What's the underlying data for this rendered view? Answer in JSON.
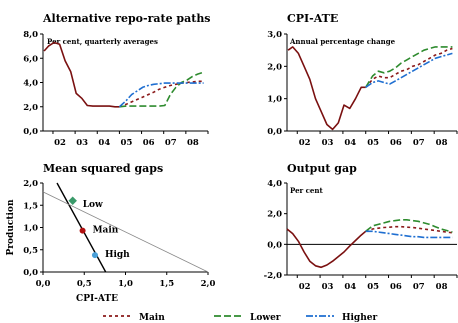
{
  "colors": {
    "main": "#8b1a1a",
    "lower": "#2e8b2e",
    "higher": "#1f6fd1",
    "history": "#7a1010",
    "axis": "#000000",
    "reference": "#888888",
    "low_marker": "#3a9a6a",
    "main_marker": "#b01010",
    "high_marker": "#4aa0d8"
  },
  "legend": {
    "main_label": "Main",
    "lower_label": "Lower",
    "higher_label": "Higher"
  },
  "chart_data": [
    {
      "type": "line",
      "title": "Alternative repo-rate paths",
      "subtitle": "Per cent, quarterly averages",
      "x_tick_labels": [
        "02",
        "03",
        "04",
        "05",
        "06",
        "07",
        "08"
      ],
      "y_tick_labels": [
        "0,0",
        "2,0",
        "4,0",
        "6,0",
        "8,0"
      ],
      "xlim": [
        2001.55,
        2009.0
      ],
      "ylim": [
        0,
        8
      ],
      "series": [
        {
          "name": "",
          "role": "history",
          "x": [
            2001.6,
            2001.8,
            2002.05,
            2002.3,
            2002.55,
            2002.8,
            2003.05,
            2003.3,
            2003.55,
            2003.8,
            2004.05,
            2004.3,
            2004.55,
            2004.8,
            2005.0
          ],
          "values": [
            6.6,
            7.0,
            7.3,
            7.15,
            5.8,
            4.9,
            3.1,
            2.7,
            2.1,
            2.05,
            2.05,
            2.05,
            2.05,
            2.0,
            2.0
          ]
        },
        {
          "name": "Main",
          "x": [
            2005.0,
            2005.3,
            2005.55,
            2005.8,
            2006.05,
            2006.3,
            2006.55,
            2006.8,
            2007.05,
            2007.3,
            2007.55,
            2007.8,
            2008.05,
            2008.3,
            2008.55,
            2008.8
          ],
          "values": [
            2.0,
            2.2,
            2.4,
            2.6,
            2.8,
            3.0,
            3.2,
            3.45,
            3.6,
            3.75,
            3.85,
            3.95,
            4.0,
            4.05,
            4.1,
            4.1
          ]
        },
        {
          "name": "Lower",
          "x": [
            2005.0,
            2005.3,
            2005.55,
            2005.8,
            2006.05,
            2006.3,
            2006.55,
            2006.8,
            2007.05,
            2007.3,
            2007.55,
            2007.8,
            2008.05,
            2008.3,
            2008.55,
            2008.8
          ],
          "values": [
            2.0,
            2.05,
            2.05,
            2.05,
            2.05,
            2.05,
            2.05,
            2.05,
            2.1,
            3.0,
            3.6,
            4.0,
            4.2,
            4.5,
            4.7,
            4.85
          ]
        },
        {
          "name": "Higher",
          "x": [
            2005.0,
            2005.3,
            2005.55,
            2005.8,
            2006.05,
            2006.3,
            2006.55,
            2006.8,
            2007.05,
            2007.3,
            2007.55,
            2007.8,
            2008.05,
            2008.3,
            2008.55,
            2008.8
          ],
          "values": [
            2.0,
            2.5,
            3.0,
            3.3,
            3.6,
            3.75,
            3.85,
            3.9,
            3.95,
            3.95,
            3.95,
            3.95,
            3.95,
            3.95,
            3.95,
            3.95
          ]
        }
      ]
    },
    {
      "type": "line",
      "title": "CPI-ATE",
      "subtitle": "Annual percentage change",
      "x_tick_labels": [
        "02",
        "03",
        "04",
        "05",
        "06",
        "07",
        "08"
      ],
      "y_tick_labels": [
        "0,0",
        "1,0",
        "2,0",
        "3,0"
      ],
      "xlim": [
        2001.55,
        2009.0
      ],
      "ylim": [
        0,
        3
      ],
      "series": [
        {
          "name": "",
          "role": "history",
          "x": [
            2001.6,
            2001.8,
            2002.05,
            2002.3,
            2002.55,
            2002.8,
            2003.05,
            2003.3,
            2003.55,
            2003.8,
            2004.05,
            2004.3,
            2004.55,
            2004.8,
            2005.0
          ],
          "values": [
            2.5,
            2.6,
            2.4,
            2.0,
            1.6,
            1.0,
            0.6,
            0.2,
            0.05,
            0.25,
            0.8,
            0.7,
            1.0,
            1.35,
            1.35
          ]
        },
        {
          "name": "Main",
          "x": [
            2005.0,
            2005.3,
            2005.55,
            2005.8,
            2006.05,
            2006.3,
            2006.55,
            2006.8,
            2007.05,
            2007.3,
            2007.55,
            2007.8,
            2008.05,
            2008.3,
            2008.55,
            2008.8
          ],
          "values": [
            1.35,
            1.6,
            1.7,
            1.65,
            1.65,
            1.75,
            1.85,
            1.9,
            2.0,
            2.05,
            2.15,
            2.25,
            2.35,
            2.4,
            2.5,
            2.55
          ]
        },
        {
          "name": "Lower",
          "x": [
            2005.0,
            2005.3,
            2005.55,
            2005.8,
            2006.05,
            2006.3,
            2006.55,
            2006.8,
            2007.05,
            2007.3,
            2007.55,
            2007.8,
            2008.05,
            2008.3,
            2008.55,
            2008.8
          ],
          "values": [
            1.35,
            1.7,
            1.85,
            1.8,
            1.85,
            1.95,
            2.1,
            2.2,
            2.3,
            2.4,
            2.5,
            2.55,
            2.6,
            2.6,
            2.6,
            2.6
          ]
        },
        {
          "name": "Higher",
          "x": [
            2005.0,
            2005.3,
            2005.55,
            2005.8,
            2006.05,
            2006.3,
            2006.55,
            2006.8,
            2007.05,
            2007.3,
            2007.55,
            2007.8,
            2008.05,
            2008.3,
            2008.55,
            2008.8
          ],
          "values": [
            1.35,
            1.5,
            1.55,
            1.5,
            1.45,
            1.55,
            1.65,
            1.75,
            1.85,
            1.95,
            2.05,
            2.15,
            2.25,
            2.3,
            2.35,
            2.4
          ]
        }
      ]
    },
    {
      "type": "scatter",
      "title": "Mean squared gaps",
      "xlabel": "CPI-ATE",
      "ylabel": "Production",
      "x_tick_labels": [
        "0,0",
        "0,5",
        "1,0",
        "1,5",
        "2,0"
      ],
      "y_tick_labels": [
        "0,0",
        "0,5",
        "1,0",
        "1,5",
        "2,0"
      ],
      "xlim": [
        0,
        2
      ],
      "ylim": [
        0,
        2
      ],
      "lines": [
        {
          "role": "frontier",
          "x": [
            0.17,
            0.76
          ],
          "values": [
            2.0,
            0.0
          ]
        },
        {
          "role": "reference",
          "x": [
            0.0,
            2.0
          ],
          "values": [
            1.8,
            0.0
          ]
        }
      ],
      "points": [
        {
          "label": "Low",
          "x": 0.36,
          "y": 1.6
        },
        {
          "label": "Main",
          "x": 0.48,
          "y": 0.93
        },
        {
          "label": "High",
          "x": 0.63,
          "y": 0.38
        }
      ]
    },
    {
      "type": "line",
      "title": "Output gap",
      "subtitle": "Per cent",
      "x_tick_labels": [
        "02",
        "03",
        "04",
        "05",
        "06",
        "07",
        "08"
      ],
      "y_tick_labels": [
        "-2,0",
        "0,0",
        "2,0",
        "4,0"
      ],
      "xlim": [
        2001.55,
        2009.0
      ],
      "ylim": [
        -2,
        4
      ],
      "series": [
        {
          "name": "",
          "role": "history",
          "x": [
            2001.55,
            2001.8,
            2002.05,
            2002.3,
            2002.55,
            2002.8,
            2003.05,
            2003.3,
            2003.55,
            2003.8,
            2004.05,
            2004.3,
            2004.55,
            2004.8,
            2005.0
          ],
          "values": [
            1.0,
            0.7,
            0.2,
            -0.5,
            -1.1,
            -1.4,
            -1.5,
            -1.35,
            -1.1,
            -0.8,
            -0.5,
            -0.1,
            0.25,
            0.6,
            0.85
          ]
        },
        {
          "name": "Main",
          "x": [
            2005.0,
            2005.3,
            2005.55,
            2005.8,
            2006.05,
            2006.3,
            2006.55,
            2006.8,
            2007.05,
            2007.3,
            2007.55,
            2007.8,
            2008.05,
            2008.3,
            2008.55,
            2008.8
          ],
          "values": [
            0.85,
            1.0,
            1.05,
            1.1,
            1.12,
            1.15,
            1.15,
            1.12,
            1.1,
            1.05,
            1.0,
            0.95,
            0.9,
            0.85,
            0.8,
            0.75
          ]
        },
        {
          "name": "Lower",
          "x": [
            2005.0,
            2005.3,
            2005.55,
            2005.8,
            2006.05,
            2006.3,
            2006.55,
            2006.8,
            2007.05,
            2007.3,
            2007.55,
            2007.8,
            2008.05,
            2008.3,
            2008.55,
            2008.8
          ],
          "values": [
            0.85,
            1.2,
            1.3,
            1.4,
            1.5,
            1.55,
            1.6,
            1.6,
            1.55,
            1.5,
            1.4,
            1.3,
            1.15,
            1.0,
            0.9,
            0.8
          ]
        },
        {
          "name": "Higher",
          "x": [
            2005.0,
            2005.3,
            2005.55,
            2005.8,
            2006.05,
            2006.3,
            2006.55,
            2006.8,
            2007.05,
            2007.3,
            2007.55,
            2007.8,
            2008.05,
            2008.3,
            2008.55,
            2008.8
          ],
          "values": [
            0.85,
            0.85,
            0.8,
            0.75,
            0.7,
            0.65,
            0.6,
            0.55,
            0.5,
            0.5,
            0.45,
            0.45,
            0.45,
            0.45,
            0.45,
            0.45
          ]
        }
      ]
    }
  ]
}
